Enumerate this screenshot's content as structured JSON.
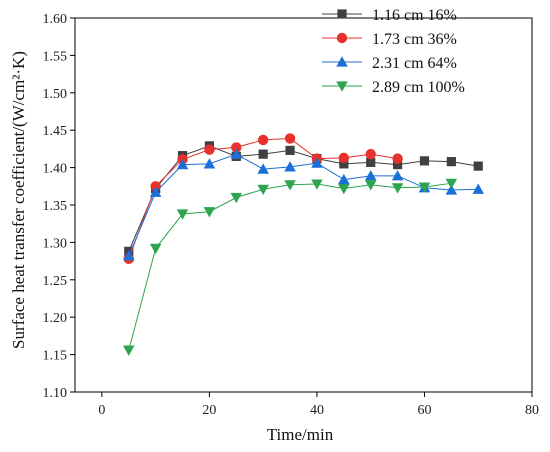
{
  "chart_data": {
    "type": "line",
    "title": "",
    "xlabel": "Time/min",
    "ylabel": "Surface heat transfer coefficient/(W/cm²·K)",
    "xlim": [
      -5,
      80
    ],
    "ylim": [
      1.1,
      1.6
    ],
    "x_ticks": [
      0,
      20,
      40,
      60,
      80
    ],
    "y_ticks": [
      1.1,
      1.15,
      1.2,
      1.25,
      1.3,
      1.35,
      1.4,
      1.45,
      1.5,
      1.55,
      1.6
    ],
    "x_tick_labels": [
      "0",
      "20",
      "40",
      "60",
      "80"
    ],
    "y_tick_labels": [
      "1.10",
      "1.15",
      "1.20",
      "1.25",
      "1.30",
      "1.35",
      "1.40",
      "1.45",
      "1.50",
      "1.55",
      "1.60"
    ],
    "grid": false,
    "legend_position": "top-right",
    "series": [
      {
        "name": "1.16 cm 16%",
        "color": "#404040",
        "marker": "square",
        "x": [
          5,
          10,
          15,
          20,
          25,
          30,
          35,
          40,
          45,
          50,
          55,
          60,
          65,
          70
        ],
        "y": [
          1.288,
          1.372,
          1.416,
          1.429,
          1.415,
          1.418,
          1.423,
          1.412,
          1.405,
          1.407,
          1.404,
          1.409,
          1.408,
          1.402
        ]
      },
      {
        "name": "1.73 cm 36%",
        "color": "#e8312d",
        "marker": "circle",
        "x": [
          5,
          10,
          15,
          20,
          25,
          30,
          35,
          40,
          45,
          50,
          55
        ],
        "y": [
          1.278,
          1.375,
          1.411,
          1.424,
          1.427,
          1.437,
          1.439,
          1.412,
          1.413,
          1.418,
          1.412
        ]
      },
      {
        "name": "2.31 cm 64%",
        "color": "#1c6fd6",
        "marker": "triangle-up",
        "x": [
          5,
          10,
          15,
          20,
          25,
          30,
          35,
          40,
          45,
          50,
          55,
          60,
          65,
          70
        ],
        "y": [
          1.282,
          1.367,
          1.404,
          1.405,
          1.418,
          1.398,
          1.401,
          1.406,
          1.384,
          1.389,
          1.389,
          1.373,
          1.37,
          1.371
        ]
      },
      {
        "name": "2.89 cm 100%",
        "color": "#2ea44f",
        "marker": "triangle-down",
        "x": [
          5,
          10,
          15,
          20,
          25,
          30,
          35,
          40,
          45,
          50,
          55,
          60,
          65
        ],
        "y": [
          1.156,
          1.292,
          1.338,
          1.341,
          1.36,
          1.371,
          1.377,
          1.378,
          1.372,
          1.377,
          1.373,
          1.374,
          1.379
        ]
      }
    ]
  }
}
